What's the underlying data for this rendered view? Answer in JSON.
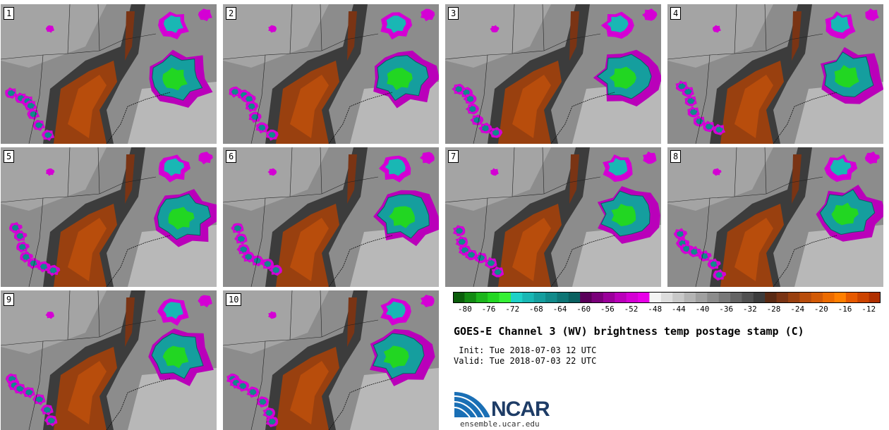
{
  "panels": [
    {
      "label": "1"
    },
    {
      "label": "2"
    },
    {
      "label": "3"
    },
    {
      "label": "4"
    },
    {
      "label": "5"
    },
    {
      "label": "6"
    },
    {
      "label": "7"
    },
    {
      "label": "8"
    },
    {
      "label": "9"
    },
    {
      "label": "10"
    }
  ],
  "colorbar": {
    "colors": [
      "#0b5d0b",
      "#138a13",
      "#1cb51c",
      "#22d622",
      "#36f036",
      "#1ed1c8",
      "#19b7b4",
      "#159e9e",
      "#118a8a",
      "#0d7575",
      "#0a6060",
      "#5a005a",
      "#7a007a",
      "#9a009a",
      "#ba00ba",
      "#d400d4",
      "#e800e8",
      "#f4f4f4",
      "#dddddd",
      "#c8c8c8",
      "#b4b4b4",
      "#a0a0a0",
      "#8c8c8c",
      "#787878",
      "#646464",
      "#505050",
      "#3c3c3c",
      "#5a2a14",
      "#7a3414",
      "#99400f",
      "#b84d0c",
      "#d25a06",
      "#ec6b00",
      "#ff7f00",
      "#e65a00",
      "#cc4400",
      "#b03000"
    ],
    "tick_labels": [
      "-80",
      "-76",
      "-72",
      "-68",
      "-64",
      "-60",
      "-56",
      "-52",
      "-48",
      "-44",
      "-40",
      "-36",
      "-32",
      "-28",
      "-24",
      "-20",
      "-16",
      "-12"
    ],
    "min": -82,
    "max": -10
  },
  "title": "GOES-E Channel 3 (WV) brightness temp postage stamp (C)",
  "init": " Init: Tue 2018-07-03 12 UTC",
  "valid": "Valid: Tue 2018-07-03 22 UTC",
  "logo": {
    "word": "NCAR",
    "url": "ensemble.ucar.edu"
  }
}
